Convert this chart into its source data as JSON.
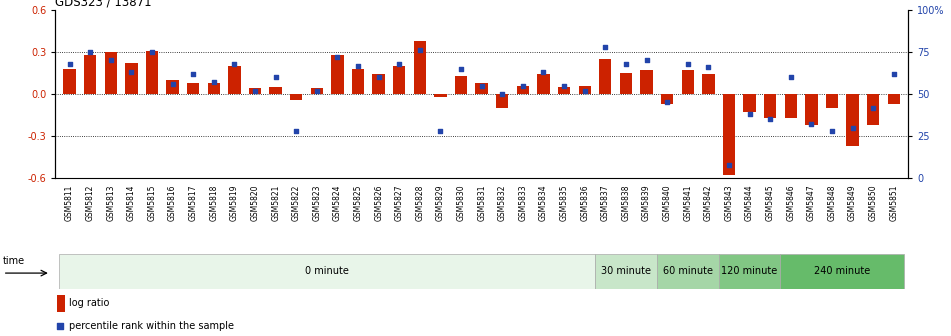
{
  "title": "GDS323 / 13871",
  "samples": [
    "GSM5811",
    "GSM5812",
    "GSM5813",
    "GSM5814",
    "GSM5815",
    "GSM5816",
    "GSM5817",
    "GSM5818",
    "GSM5819",
    "GSM5820",
    "GSM5821",
    "GSM5822",
    "GSM5823",
    "GSM5824",
    "GSM5825",
    "GSM5826",
    "GSM5827",
    "GSM5828",
    "GSM5829",
    "GSM5830",
    "GSM5831",
    "GSM5832",
    "GSM5833",
    "GSM5834",
    "GSM5835",
    "GSM5836",
    "GSM5837",
    "GSM5838",
    "GSM5839",
    "GSM5840",
    "GSM5841",
    "GSM5842",
    "GSM5843",
    "GSM5844",
    "GSM5845",
    "GSM5846",
    "GSM5847",
    "GSM5848",
    "GSM5849",
    "GSM5850",
    "GSM5851"
  ],
  "log_ratio": [
    0.18,
    0.28,
    0.3,
    0.22,
    0.31,
    0.1,
    0.08,
    0.08,
    0.2,
    0.04,
    0.05,
    -0.04,
    0.04,
    0.28,
    0.18,
    0.14,
    0.2,
    0.38,
    -0.02,
    0.13,
    0.08,
    -0.1,
    0.06,
    0.14,
    0.05,
    0.06,
    0.25,
    0.15,
    0.17,
    -0.07,
    0.17,
    0.14,
    -0.58,
    -0.13,
    -0.17,
    -0.17,
    -0.22,
    -0.1,
    -0.37,
    -0.22,
    -0.07
  ],
  "percentile": [
    68,
    75,
    70,
    63,
    75,
    56,
    62,
    57,
    68,
    52,
    60,
    28,
    52,
    72,
    67,
    60,
    68,
    76,
    28,
    65,
    55,
    50,
    55,
    63,
    55,
    52,
    78,
    68,
    70,
    45,
    68,
    66,
    8,
    38,
    35,
    60,
    32,
    28,
    30,
    42,
    62
  ],
  "time_groups": [
    {
      "label": "0 minute",
      "start": 0,
      "end": 26,
      "color": "#e8f5e9"
    },
    {
      "label": "30 minute",
      "start": 26,
      "end": 29,
      "color": "#c8e6c9"
    },
    {
      "label": "60 minute",
      "start": 29,
      "end": 32,
      "color": "#a5d6a7"
    },
    {
      "label": "120 minute",
      "start": 32,
      "end": 35,
      "color": "#81c784"
    },
    {
      "label": "240 minute",
      "start": 35,
      "end": 41,
      "color": "#66bb6a"
    }
  ],
  "bar_color": "#cc2200",
  "dot_color": "#2244aa",
  "ylim_left": [
    -0.6,
    0.6
  ],
  "ylim_right": [
    0,
    100
  ],
  "yticks_left": [
    -0.6,
    -0.3,
    0.0,
    0.3,
    0.6
  ],
  "yticks_right": [
    0,
    25,
    50,
    75,
    100
  ],
  "ytick_labels_right": [
    "0",
    "25",
    "50",
    "75",
    "100%"
  ],
  "fig_width": 9.51,
  "fig_height": 3.36
}
